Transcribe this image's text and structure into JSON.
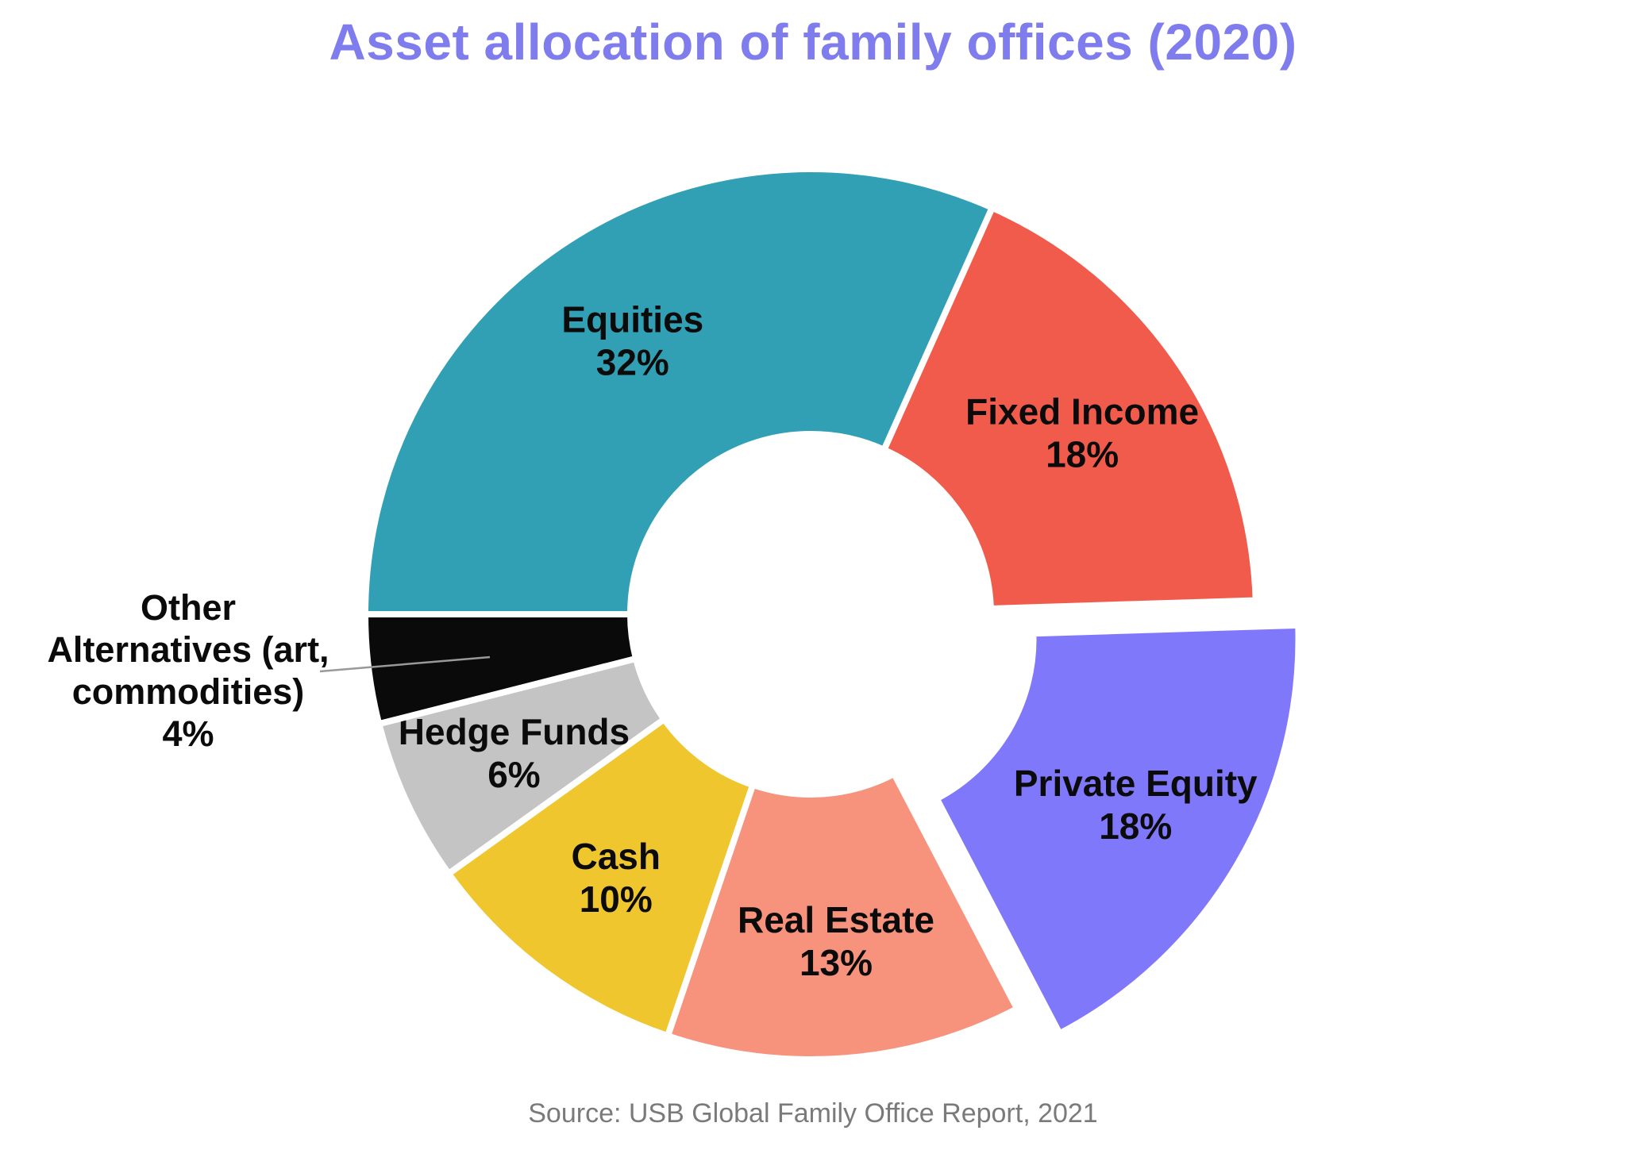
{
  "page": {
    "background": "#FFFFFF"
  },
  "chart_data": {
    "type": "pie",
    "subtype": "donut",
    "title": "Asset allocation of family offices (2020)",
    "title_color": "#7F7CEE",
    "source": "Source: USB Global Family Office Report, 2021",
    "source_color": "#7A7A7A",
    "label_color": "#0B0B0B",
    "gap_color": "#FFFFFF",
    "legend_position": "none",
    "donut_hole_ratio": 0.4,
    "start_position": "left-horizontal, clockwise",
    "slices": [
      {
        "name": "Equities",
        "value": 32,
        "pct_label": "32%",
        "color": "#31A0B5"
      },
      {
        "name": "Fixed Income",
        "value": 18,
        "pct_label": "18%",
        "color": "#F15B4B"
      },
      {
        "name": "Private Equity",
        "value": 18,
        "pct_label": "18%",
        "color": "#8078FA",
        "exploded": true
      },
      {
        "name": "Real Estate",
        "value": 13,
        "pct_label": "13%",
        "color": "#F7937C"
      },
      {
        "name": "Cash",
        "value": 10,
        "pct_label": "10%",
        "color": "#F0C62F"
      },
      {
        "name": "Hedge Funds",
        "value": 6,
        "pct_label": "6%",
        "color": "#C5C4C4"
      },
      {
        "name": "Other Alternatives (art, commodities)",
        "value": 4,
        "pct_label": "4%",
        "color": "#0A0A0A",
        "label_outside": true,
        "label_lines": [
          "Other",
          "Alternatives (art,",
          "commodities)",
          "4%"
        ],
        "leader_line_color": "#999999"
      }
    ]
  }
}
